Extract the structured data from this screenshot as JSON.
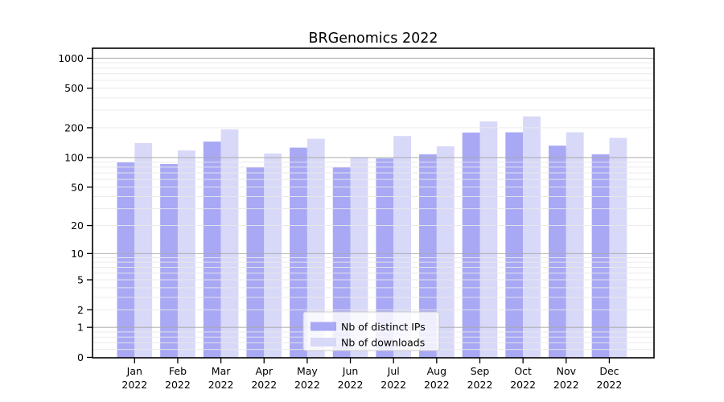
{
  "chart_data": {
    "type": "bar",
    "title": "BRGenomics 2022",
    "categories": [
      "Jan",
      "Feb",
      "Mar",
      "Apr",
      "May",
      "Jun",
      "Jul",
      "Aug",
      "Sep",
      "Oct",
      "Nov",
      "Dec"
    ],
    "category_year": "2022",
    "series": [
      {
        "name": "Nb of distinct IPs",
        "color": "#a8a8f5",
        "values": [
          90,
          86,
          145,
          80,
          126,
          80,
          98,
          108,
          179,
          180,
          132,
          108
        ]
      },
      {
        "name": "Nb of downloads",
        "color": "#d8d8f8",
        "values": [
          140,
          118,
          193,
          110,
          155,
          101,
          165,
          130,
          232,
          260,
          180,
          158
        ]
      }
    ],
    "y_scale": "log10(1+v) with 0 shown",
    "y_ticks": [
      1000,
      500,
      200,
      100,
      50,
      20,
      10,
      5,
      2,
      1,
      0
    ],
    "ylim": [
      0,
      1260
    ],
    "grid": "horizontal major+minor, drawn above bars",
    "legend_position": "inside lower-center"
  },
  "colors": {
    "background": "#ffffff",
    "axis": "#000000",
    "grid_major": "#a8a8a8",
    "grid_minor": "#e9e9e9",
    "legend_border": "#cccccc",
    "legend_background": "rgba(255,255,255,0.8)"
  }
}
